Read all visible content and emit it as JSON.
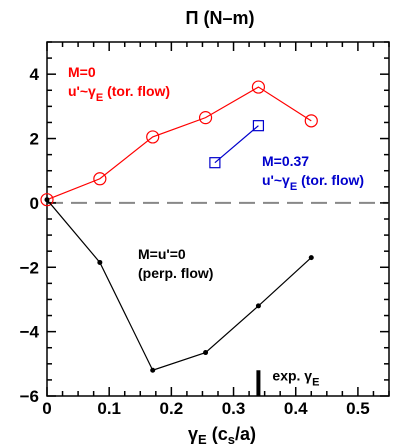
{
  "chart_data": {
    "type": "line",
    "title": "Π (N–m)",
    "xlabel": {
      "main": "γ",
      "sub": "E",
      "rest_open": " (c",
      "sub2": "s",
      "rest_close": "/a)"
    },
    "ylabel": "",
    "xlim": [
      0,
      0.55
    ],
    "ylim": [
      -6,
      5
    ],
    "xticks": [
      "0",
      "0.1",
      "0.2",
      "0.3",
      "0.4",
      "0.5"
    ],
    "xtick_values": [
      0,
      0.1,
      0.2,
      0.3,
      0.4,
      0.5
    ],
    "yticks": [
      "4",
      "2",
      "0",
      "−2",
      "−4",
      "−6"
    ],
    "ytick_values": [
      4,
      2,
      0,
      -2,
      -4,
      -6
    ],
    "grid": false,
    "reference_line": {
      "y": 0,
      "style": "dashed",
      "color": "#888888"
    },
    "series": [
      {
        "color": "#ff0000",
        "marker": "circle",
        "label_lines": [
          {
            "text": "M=0"
          },
          {
            "text": "u'~γ",
            "sub": "E",
            "rest": " (tor. flow)"
          }
        ],
        "points": [
          [
            0.0,
            0.1
          ],
          [
            0.085,
            0.75
          ],
          [
            0.17,
            2.05
          ],
          [
            0.255,
            2.65
          ],
          [
            0.34,
            3.6
          ],
          [
            0.425,
            2.55
          ]
        ]
      },
      {
        "color": "#0000cc",
        "marker": "square",
        "label_lines": [
          {
            "text": "M=0.37"
          },
          {
            "text": "u'~γ",
            "sub": "E",
            "rest": " (tor. flow)"
          }
        ],
        "points": [
          [
            0.27,
            1.25
          ],
          [
            0.34,
            2.4
          ]
        ]
      },
      {
        "color": "#000000",
        "marker": "dot",
        "label_lines": [
          {
            "text": "M=u'=0"
          },
          {
            "text": "(perp. flow)"
          }
        ],
        "points": [
          [
            0.0,
            0.1
          ],
          [
            0.085,
            -1.85
          ],
          [
            0.17,
            -5.2
          ],
          [
            0.255,
            -4.65
          ],
          [
            0.34,
            -3.2
          ],
          [
            0.425,
            -1.7
          ]
        ]
      }
    ],
    "exp_marker": {
      "x": 0.34,
      "y_from": -6,
      "y_to": -5.2,
      "label": "exp. γ",
      "sub": "E"
    }
  }
}
